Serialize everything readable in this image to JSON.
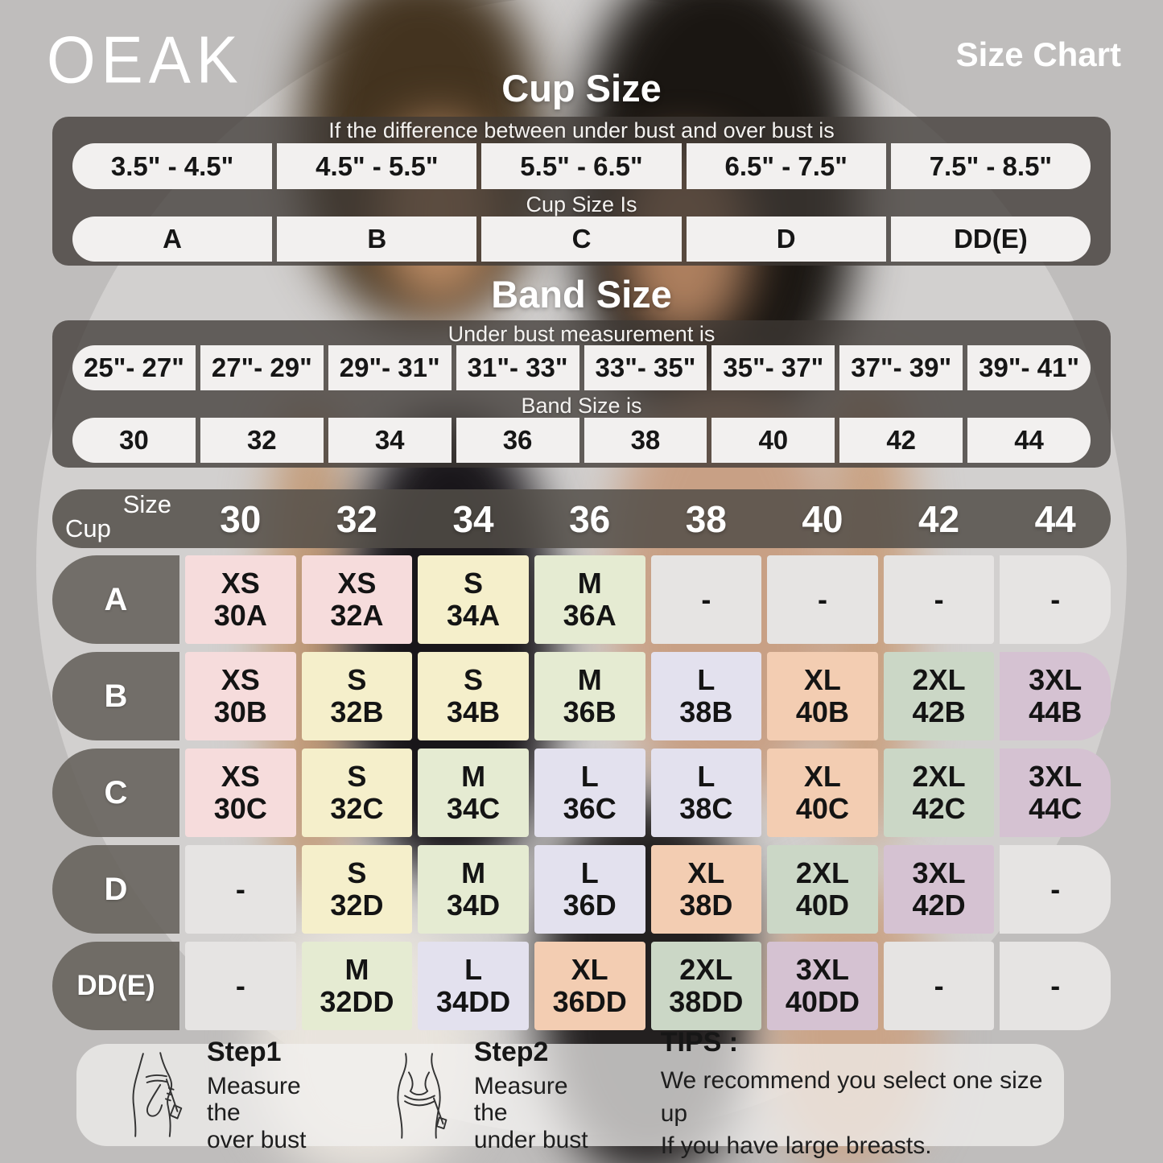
{
  "brand": "OEAK",
  "page_title": "Size Chart",
  "cup_section": {
    "title": "Cup Size",
    "instruction": "If the  difference between under bust and over bust is",
    "ranges": [
      "3.5\" - 4.5\"",
      "4.5\" - 5.5\"",
      "5.5\" - 6.5\"",
      "6.5\" - 7.5\"",
      "7.5\" - 8.5\""
    ],
    "result_label": "Cup Size Is",
    "cups": [
      "A",
      "B",
      "C",
      "D",
      "DD(E)"
    ]
  },
  "band_section": {
    "title": "Band Size",
    "instruction": "Under bust measurement is",
    "ranges": [
      "25\"- 27\"",
      "27\"- 29\"",
      "29\"- 31\"",
      "31\"- 33\"",
      "33\"- 35\"",
      "35\"- 37\"",
      "37\"- 39\"",
      "39\"- 41\""
    ],
    "result_label": "Band Size is",
    "bands": [
      "30",
      "32",
      "34",
      "36",
      "38",
      "40",
      "42",
      "44"
    ]
  },
  "matrix": {
    "corner_top": "Size",
    "corner_bottom": "Cup",
    "columns": [
      "30",
      "32",
      "34",
      "36",
      "38",
      "40",
      "42",
      "44"
    ],
    "rows": [
      {
        "cup": "A",
        "cells": [
          {
            "size": "XS",
            "code": "30A",
            "color": "pink"
          },
          {
            "size": "XS",
            "code": "32A",
            "color": "pink"
          },
          {
            "size": "S",
            "code": "34A",
            "color": "yellow"
          },
          {
            "size": "M",
            "code": "36A",
            "color": "green"
          },
          {
            "size": "-",
            "code": "",
            "color": "empty"
          },
          {
            "size": "-",
            "code": "",
            "color": "empty"
          },
          {
            "size": "-",
            "code": "",
            "color": "empty"
          },
          {
            "size": "-",
            "code": "",
            "color": "empty"
          }
        ]
      },
      {
        "cup": "B",
        "cells": [
          {
            "size": "XS",
            "code": "30B",
            "color": "pink"
          },
          {
            "size": "S",
            "code": "32B",
            "color": "yellow"
          },
          {
            "size": "S",
            "code": "34B",
            "color": "yellow"
          },
          {
            "size": "M",
            "code": "36B",
            "color": "green"
          },
          {
            "size": "L",
            "code": "38B",
            "color": "lavender"
          },
          {
            "size": "XL",
            "code": "40B",
            "color": "peach"
          },
          {
            "size": "2XL",
            "code": "42B",
            "color": "sage"
          },
          {
            "size": "3XL",
            "code": "44B",
            "color": "mauve"
          }
        ]
      },
      {
        "cup": "C",
        "cells": [
          {
            "size": "XS",
            "code": "30C",
            "color": "pink"
          },
          {
            "size": "S",
            "code": "32C",
            "color": "yellow"
          },
          {
            "size": "M",
            "code": "34C",
            "color": "green"
          },
          {
            "size": "L",
            "code": "36C",
            "color": "lavender"
          },
          {
            "size": "L",
            "code": "38C",
            "color": "lavender"
          },
          {
            "size": "XL",
            "code": "40C",
            "color": "peach"
          },
          {
            "size": "2XL",
            "code": "42C",
            "color": "sage"
          },
          {
            "size": "3XL",
            "code": "44C",
            "color": "mauve"
          }
        ]
      },
      {
        "cup": "D",
        "cells": [
          {
            "size": "-",
            "code": "",
            "color": "empty"
          },
          {
            "size": "S",
            "code": "32D",
            "color": "yellow"
          },
          {
            "size": "M",
            "code": "34D",
            "color": "green"
          },
          {
            "size": "L",
            "code": "36D",
            "color": "lavender"
          },
          {
            "size": "XL",
            "code": "38D",
            "color": "peach"
          },
          {
            "size": "2XL",
            "code": "40D",
            "color": "sage"
          },
          {
            "size": "3XL",
            "code": "42D",
            "color": "mauve"
          },
          {
            "size": "-",
            "code": "",
            "color": "empty"
          }
        ]
      },
      {
        "cup": "DD(E)",
        "cells": [
          {
            "size": "-",
            "code": "",
            "color": "empty"
          },
          {
            "size": "M",
            "code": "32DD",
            "color": "green"
          },
          {
            "size": "L",
            "code": "34DD",
            "color": "lavender"
          },
          {
            "size": "XL",
            "code": "36DD",
            "color": "peach"
          },
          {
            "size": "2XL",
            "code": "38DD",
            "color": "sage"
          },
          {
            "size": "3XL",
            "code": "40DD",
            "color": "mauve"
          },
          {
            "size": "-",
            "code": "",
            "color": "empty"
          },
          {
            "size": "-",
            "code": "",
            "color": "empty"
          }
        ]
      }
    ]
  },
  "footer": {
    "steps": [
      {
        "title": "Step1",
        "lines": [
          "Measure the",
          "over bust"
        ]
      },
      {
        "title": "Step2",
        "lines": [
          "Measure the",
          "under bust"
        ]
      }
    ],
    "tips": {
      "title": "TIPS :",
      "lines": [
        "We recommend you select one size up",
        "If you have large breasts."
      ]
    }
  },
  "colors": {
    "pink": "#f6dcdc",
    "yellow": "#f5efcb",
    "green": "#e5ebd2",
    "lavender": "#e3e1ee",
    "peach": "#f3cdb2",
    "sage": "#cbd7c6",
    "mauve": "#d5c2d2",
    "empty": "#e6e4e3",
    "heading_text": "#ffffff",
    "bar_background": "#3e3935"
  }
}
